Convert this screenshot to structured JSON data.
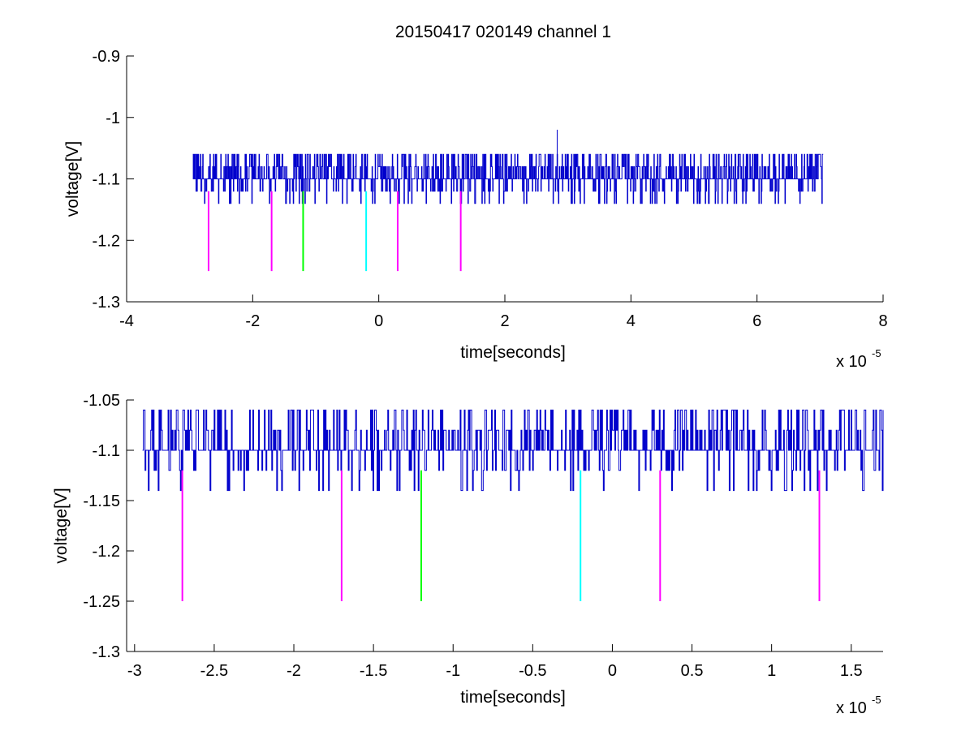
{
  "figure": {
    "title": "20150417 020149 channel 1"
  },
  "colors": {
    "trace": "#0000cc",
    "magenta": "#ff00ff",
    "green": "#00ff00",
    "cyan": "#00ffff",
    "axes": "#000000"
  },
  "chart_data": [
    {
      "type": "line",
      "title": "20150417 020149 channel 1",
      "xlabel": "time[seconds]",
      "ylabel": "voltage[V]",
      "x_multiplier": "x 10",
      "x_multiplier_exp": "-5",
      "xlim": [
        -4,
        8
      ],
      "ylim": [
        -1.3,
        -0.9
      ],
      "xticks": [
        -4,
        -2,
        0,
        2,
        4,
        6,
        8
      ],
      "xtick_labels": [
        "-4",
        "-2",
        "0",
        "2",
        "4",
        "6",
        "8"
      ],
      "yticks": [
        -1.3,
        -1.2,
        -1.1,
        -1.0,
        -0.9
      ],
      "ytick_labels": [
        "-1.3",
        "-1.2",
        "-1.1",
        "-1",
        "-0.9"
      ],
      "trace": {
        "x_range": [
          -2.95,
          7.05
        ],
        "levels": [
          -1.14,
          -1.12,
          -1.1,
          -1.08,
          -1.06
        ],
        "baseline": -1.1,
        "spike": {
          "x": 2.83,
          "y": -1.02
        }
      },
      "markers": [
        {
          "x": -2.7,
          "y": [
            -1.25,
            -1.12
          ],
          "color": "magenta"
        },
        {
          "x": -1.7,
          "y": [
            -1.25,
            -1.12
          ],
          "color": "magenta"
        },
        {
          "x": -1.2,
          "y": [
            -1.25,
            -1.12
          ],
          "color": "green"
        },
        {
          "x": -0.2,
          "y": [
            -1.25,
            -1.12
          ],
          "color": "cyan"
        },
        {
          "x": 0.3,
          "y": [
            -1.25,
            -1.12
          ],
          "color": "magenta"
        },
        {
          "x": 1.3,
          "y": [
            -1.25,
            -1.12
          ],
          "color": "magenta"
        }
      ]
    },
    {
      "type": "line",
      "xlabel": "time[seconds]",
      "ylabel": "voltage[V]",
      "x_multiplier": "x 10",
      "x_multiplier_exp": "-5",
      "xlim": [
        -3.05,
        1.7
      ],
      "ylim": [
        -1.3,
        -1.05
      ],
      "xticks": [
        -3,
        -2.5,
        -2,
        -1.5,
        -1,
        -0.5,
        0,
        0.5,
        1,
        1.5
      ],
      "xtick_labels": [
        "-3",
        "-2.5",
        "-2",
        "-1.5",
        "-1",
        "-0.5",
        "0",
        "0.5",
        "1",
        "1.5"
      ],
      "yticks": [
        -1.3,
        -1.25,
        -1.2,
        -1.15,
        -1.1,
        -1.05
      ],
      "ytick_labels": [
        "-1.3",
        "-1.25",
        "-1.2",
        "-1.15",
        "-1.1",
        "-1.05"
      ],
      "trace": {
        "x_range": [
          -2.95,
          1.7
        ],
        "levels": [
          -1.14,
          -1.12,
          -1.1,
          -1.08,
          -1.06
        ],
        "baseline": -1.1
      },
      "markers": [
        {
          "x": -2.7,
          "y": [
            -1.25,
            -1.12
          ],
          "color": "magenta"
        },
        {
          "x": -1.7,
          "y": [
            -1.25,
            -1.12
          ],
          "color": "magenta"
        },
        {
          "x": -1.2,
          "y": [
            -1.25,
            -1.12
          ],
          "color": "green"
        },
        {
          "x": -0.2,
          "y": [
            -1.25,
            -1.12
          ],
          "color": "cyan"
        },
        {
          "x": 0.3,
          "y": [
            -1.25,
            -1.12
          ],
          "color": "magenta"
        },
        {
          "x": 1.3,
          "y": [
            -1.25,
            -1.12
          ],
          "color": "magenta"
        }
      ]
    }
  ]
}
